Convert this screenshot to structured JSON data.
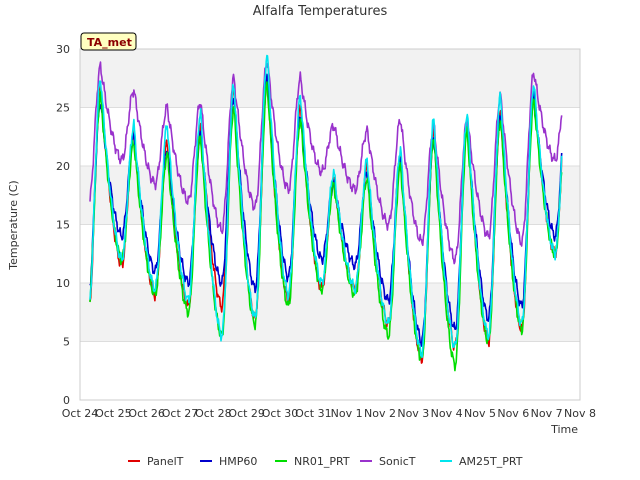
{
  "chart_data": {
    "type": "line",
    "title": "Alfalfa Temperatures",
    "xlabel": "Time",
    "ylabel": "Temperature (C)",
    "site_label": "TA_met",
    "ylim": [
      0,
      30
    ],
    "yticks": [
      0,
      5,
      10,
      15,
      20,
      25,
      30
    ],
    "xlim": [
      0,
      15
    ],
    "xticks": [
      "Oct 24",
      "Oct 25",
      "Oct 26",
      "Oct 27",
      "Oct 28",
      "Oct 29",
      "Oct 30",
      "Oct 31",
      "Nov 1",
      "Nov 2",
      "Nov 3",
      "Nov 4",
      "Nov 5",
      "Nov 6",
      "Nov 7",
      "Nov 8"
    ],
    "grid": "horizontal bands",
    "legend_position": "bottom",
    "series": [
      {
        "name": "PanelT",
        "color": "#e00000",
        "daily_min": [
          7.0,
          11.5,
          9.0,
          8.0,
          8.0,
          7.0,
          8.5,
          9.5,
          9.5,
          6.5,
          3.5,
          4.5,
          5.0,
          6.0,
          12.5
        ],
        "daily_max": [
          27.0,
          23.0,
          22.0,
          23.5,
          26.5,
          27.5,
          25.0,
          19.0,
          20.0,
          21.0,
          23.0,
          24.0,
          24.5,
          26.5
        ]
      },
      {
        "name": "HMP60",
        "color": "#0000cc",
        "daily_min": [
          9.0,
          14.0,
          11.0,
          10.0,
          10.0,
          9.5,
          10.5,
          12.0,
          11.5,
          8.5,
          5.0,
          6.0,
          7.0,
          8.0,
          14.0
        ],
        "daily_max": [
          25.5,
          22.5,
          21.5,
          22.5,
          26.0,
          27.5,
          24.5,
          18.5,
          19.5,
          20.5,
          22.5,
          23.5,
          24.5,
          26.0
        ]
      },
      {
        "name": "NR01_PRT",
        "color": "#00dd00",
        "daily_min": [
          8.0,
          12.0,
          9.0,
          7.5,
          5.5,
          6.5,
          8.0,
          9.5,
          9.0,
          5.5,
          3.5,
          3.0,
          5.0,
          6.0,
          12.5
        ],
        "daily_max": [
          26.0,
          22.0,
          21.0,
          22.5,
          25.0,
          27.0,
          24.0,
          18.5,
          19.0,
          20.0,
          22.5,
          23.0,
          24.0,
          25.5
        ]
      },
      {
        "name": "SonicT",
        "color": "#9932cc",
        "daily_min": [
          16.5,
          20.5,
          18.5,
          17.0,
          14.5,
          16.5,
          18.0,
          19.5,
          18.0,
          15.0,
          13.5,
          12.0,
          14.0,
          13.5,
          20.5
        ],
        "daily_max": [
          28.5,
          26.5,
          25.0,
          25.5,
          27.5,
          29.0,
          27.5,
          23.5,
          23.0,
          24.0,
          23.5,
          24.0,
          26.0,
          28.0
        ]
      },
      {
        "name": "AM25T_PRT",
        "color": "#00e5ee",
        "daily_min": [
          7.5,
          12.0,
          9.5,
          8.5,
          5.5,
          7.0,
          9.0,
          10.0,
          9.5,
          6.5,
          4.0,
          4.5,
          5.5,
          6.5,
          12.5
        ],
        "daily_max": [
          27.5,
          23.5,
          23.5,
          24.5,
          27.0,
          29.5,
          26.0,
          19.5,
          20.5,
          21.5,
          24.0,
          24.5,
          26.0,
          27.0
        ]
      }
    ]
  }
}
